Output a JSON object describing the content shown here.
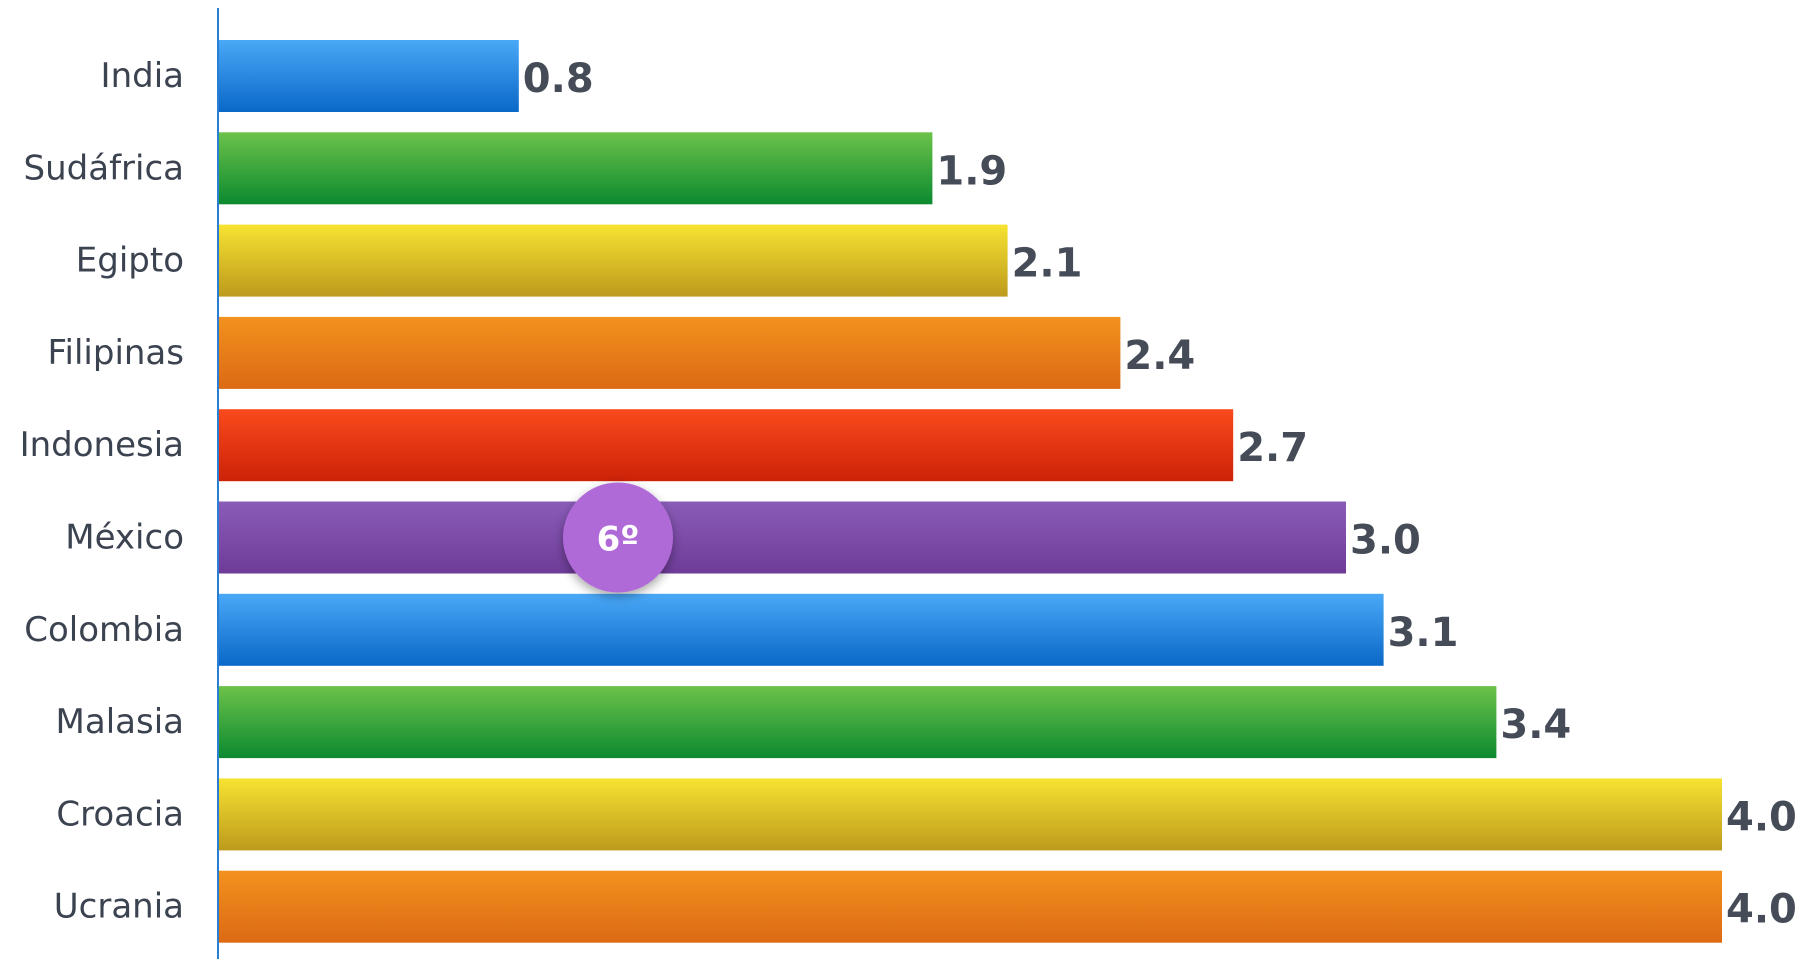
{
  "chart_data": {
    "type": "bar",
    "orientation": "horizontal",
    "categories": [
      "India",
      "Sudáfrica",
      "Egipto",
      "Filipinas",
      "Indonesia",
      "México",
      "Colombia",
      "Malasia",
      "Croacia",
      "Ucrania"
    ],
    "values": [
      0.8,
      1.9,
      2.1,
      2.4,
      2.7,
      3.0,
      3.1,
      3.4,
      4.0,
      4.0
    ],
    "value_labels": [
      "0.8",
      "1.9",
      "2.1",
      "2.4",
      "2.7",
      "3.0",
      "3.1",
      "3.4",
      "4.0",
      "4.0"
    ],
    "xlim": [
      0,
      4.0
    ],
    "grid": false,
    "legend": "none",
    "title": "",
    "xlabel": "",
    "ylabel": "",
    "highlight": {
      "category": "México",
      "rank_label": "6º",
      "color": "#b06ad8"
    },
    "bar_colors": [
      "blue",
      "green",
      "yellow",
      "orange",
      "red",
      "purple",
      "blue",
      "green",
      "yellow",
      "orange"
    ],
    "palette": {
      "blue": {
        "top": "#4aa8f7",
        "bottom": "#0a68c8"
      },
      "green": {
        "top": "#6cc24a",
        "bottom": "#0c8a30"
      },
      "yellow": {
        "top": "#f7e332",
        "bottom": "#bd9a1c"
      },
      "orange": {
        "top": "#f2921e",
        "bottom": "#dc6a14"
      },
      "red": {
        "top": "#fa4a1c",
        "bottom": "#cc2208"
      },
      "purple": {
        "top": "#8a5cb8",
        "bottom": "#6e3c98"
      }
    },
    "axis_color": "#2a7fd4",
    "category_text_color": "#3c4350",
    "value_text_color": "#454c58"
  }
}
